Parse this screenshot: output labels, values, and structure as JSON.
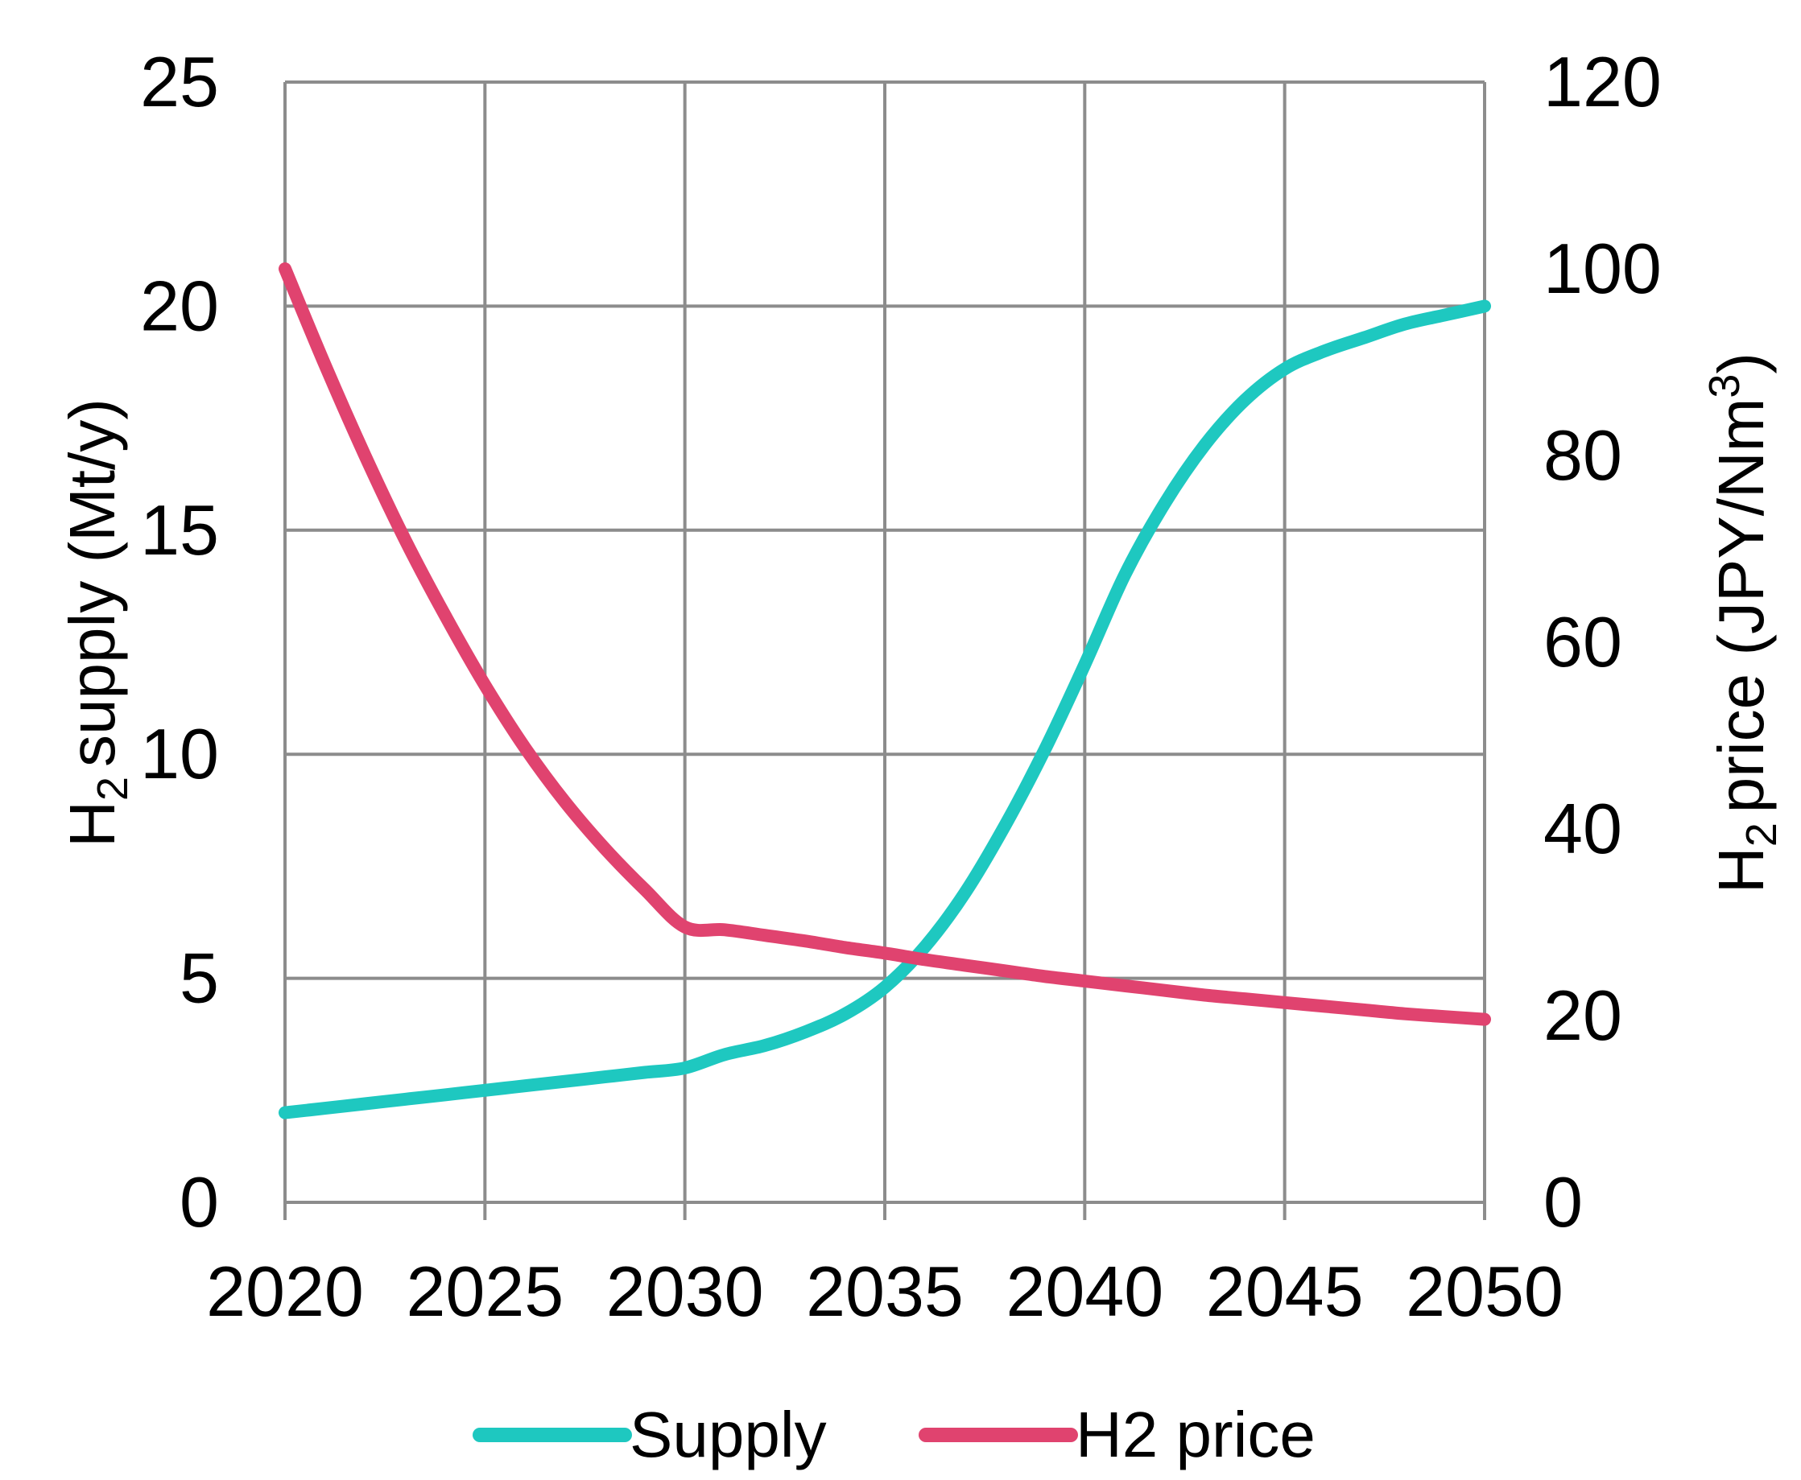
{
  "chart_data": {
    "type": "line",
    "title": "",
    "xlabel": "",
    "x": [
      2020,
      2021,
      2022,
      2023,
      2024,
      2025,
      2026,
      2027,
      2028,
      2029,
      2030,
      2031,
      2032,
      2033,
      2034,
      2035,
      2036,
      2037,
      2038,
      2039,
      2040,
      2041,
      2042,
      2043,
      2044,
      2045,
      2046,
      2047,
      2048,
      2049,
      2050
    ],
    "xticks": [
      "2020",
      "2025",
      "2030",
      "2035",
      "2040",
      "2045",
      "2050"
    ],
    "xlim": [
      2020,
      2050
    ],
    "y_left": {
      "label_main": "H",
      "label_sub": "2",
      "label_rest": "supply (Mt/y)",
      "lim": [
        0,
        25
      ],
      "ticks": [
        "0",
        "5",
        "10",
        "15",
        "20",
        "25"
      ]
    },
    "y_right": {
      "label_main": "H",
      "label_sub": "2",
      "label_rest": "price (JPY/Nm",
      "label_sup": "3",
      "label_end": ")",
      "lim": [
        0,
        120
      ],
      "ticks": [
        "0",
        "20",
        "40",
        "60",
        "80",
        "100",
        "120"
      ]
    },
    "grid": true,
    "legend_position": "bottom",
    "series": [
      {
        "name": "Supply",
        "axis": "left",
        "color": "#1ec8c0",
        "values": [
          2.0,
          2.1,
          2.2,
          2.3,
          2.4,
          2.5,
          2.6,
          2.7,
          2.8,
          2.9,
          3.0,
          3.3,
          3.5,
          3.8,
          4.2,
          4.8,
          5.7,
          6.9,
          8.4,
          10.1,
          12.0,
          14.0,
          15.6,
          16.9,
          17.9,
          18.6,
          19.0,
          19.3,
          19.6,
          19.8,
          20.0
        ]
      },
      {
        "name": "H2 price",
        "axis": "right",
        "color": "#e0436f",
        "values": [
          100.0,
          89.7,
          80.0,
          71.0,
          62.9,
          55.4,
          48.7,
          42.9,
          37.9,
          33.5,
          29.5,
          29.2,
          28.6,
          28.0,
          27.3,
          26.7,
          26.0,
          25.4,
          24.8,
          24.2,
          23.7,
          23.2,
          22.7,
          22.2,
          21.8,
          21.4,
          21.0,
          20.6,
          20.2,
          19.9,
          19.6
        ]
      }
    ]
  }
}
